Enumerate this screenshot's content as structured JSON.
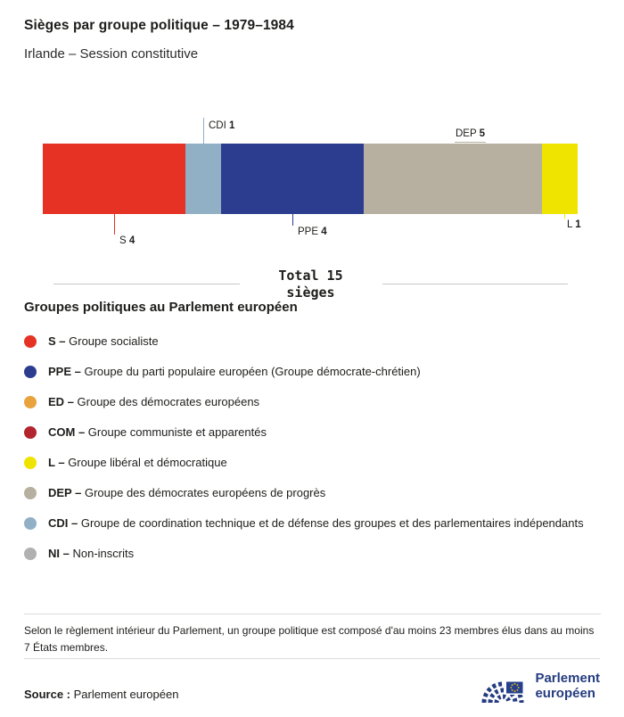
{
  "chart_data": {
    "type": "bar",
    "stacked": true,
    "title": "Sièges par groupe politique – 1979–1984",
    "subtitle": "Irlande – Session constitutive",
    "total": 15,
    "total_line1": "Total 15",
    "total_line2": "sièges",
    "categories": [
      "S",
      "CDI",
      "PPE",
      "DEP",
      "L"
    ],
    "series": [
      {
        "code": "S",
        "seats": 4,
        "color": "#e63224"
      },
      {
        "code": "CDI",
        "seats": 1,
        "color": "#91b0c6"
      },
      {
        "code": "PPE",
        "seats": 4,
        "color": "#2c3d8f"
      },
      {
        "code": "DEP",
        "seats": 5,
        "color": "#b7af9f"
      },
      {
        "code": "L",
        "seats": 1,
        "color": "#efe400"
      }
    ]
  },
  "legend": {
    "heading": "Groupes politiques au Parlement européen",
    "items": [
      {
        "prefix": "S –",
        "label": "Groupe socialiste",
        "color": "#e63224"
      },
      {
        "prefix": "PPE –",
        "label": "Groupe du parti populaire européen (Groupe démocrate-chrétien)",
        "color": "#2c3d8f"
      },
      {
        "prefix": "ED –",
        "label": "Groupe des démocrates européens",
        "color": "#e8a33d"
      },
      {
        "prefix": "COM –",
        "label": "Groupe communiste et apparentés",
        "color": "#b2242e"
      },
      {
        "prefix": "L –",
        "label": "Groupe libéral et démocratique",
        "color": "#efe400"
      },
      {
        "prefix": "DEP –",
        "label": "Groupe des démocrates européens de progrès",
        "color": "#b7af9f"
      },
      {
        "prefix": "CDI –",
        "label": "Groupe de coordination technique et de défense des groupes et des parlementaires indépendants",
        "color": "#91b0c6"
      },
      {
        "prefix": "NI –",
        "label": "Non-inscrits",
        "color": "#b1b1b1"
      }
    ]
  },
  "footer": {
    "note": "Selon le règlement intérieur du Parlement, un groupe politique est composé d'au moins 23 membres élus dans au moins 7 États membres.",
    "source_label": "Source :",
    "source_value": "Parlement européen",
    "logo_line1": "Parlement",
    "logo_line2": "européen"
  }
}
